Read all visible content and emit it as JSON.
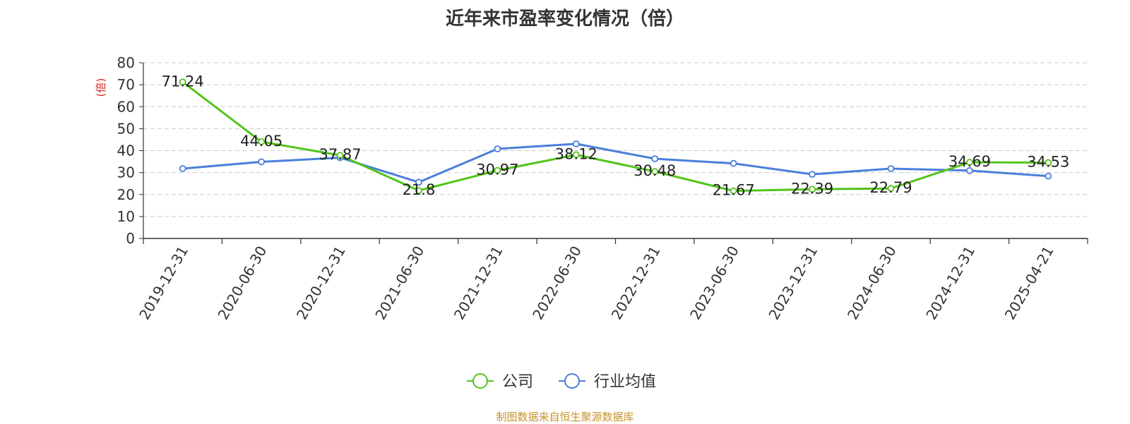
{
  "title": "近年来市盈率变化情况（倍）",
  "source_note": "制图数据来自恒生聚源数据库",
  "colors": {
    "company": "#52c41a",
    "industry": "#4a7fdb",
    "ylabel": "#e02020",
    "source": "#c7932a"
  },
  "chart_data": {
    "type": "line",
    "title": "近年来市盈率变化情况（倍）",
    "xlabel": "",
    "ylabel": "(倍)",
    "ylim": [
      0,
      80
    ],
    "yticks": [
      0,
      10,
      20,
      30,
      40,
      50,
      60,
      70,
      80
    ],
    "grid": true,
    "legend_position": "bottom-center",
    "categories": [
      "2019-12-31",
      "2020-06-30",
      "2020-12-31",
      "2021-06-30",
      "2021-12-31",
      "2022-06-30",
      "2022-12-31",
      "2023-06-30",
      "2023-12-31",
      "2024-06-30",
      "2024-12-31",
      "2025-04-21"
    ],
    "series": [
      {
        "name": "公司",
        "color": "#52c41a",
        "values": [
          71.24,
          44.05,
          37.87,
          21.8,
          30.97,
          38.12,
          30.48,
          21.67,
          22.39,
          22.79,
          34.69,
          34.53
        ],
        "labels": [
          "71.24",
          "44.05",
          "37.87",
          "21.8",
          "30.97",
          "38.12",
          "30.48",
          "21.67",
          "22.39",
          "22.79",
          "34.69",
          "34.53"
        ]
      },
      {
        "name": "行业均值",
        "color": "#4a7fdb",
        "values": [
          31.8,
          34.9,
          36.8,
          25.6,
          40.8,
          43.1,
          36.3,
          34.2,
          29.2,
          31.8,
          30.9,
          28.4
        ]
      }
    ]
  }
}
